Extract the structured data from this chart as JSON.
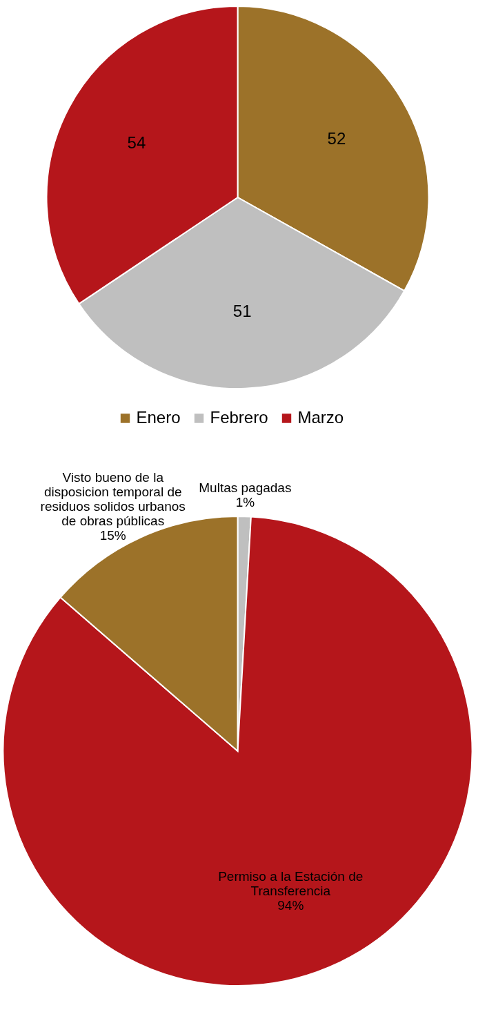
{
  "chart_data": [
    {
      "type": "pie",
      "categories": [
        "Enero",
        "Febrero",
        "Marzo"
      ],
      "values": [
        52,
        51,
        54
      ],
      "colors": [
        "#9c7229",
        "#bfbfbf",
        "#b5161b"
      ],
      "data_labels": true,
      "legend": "bottom"
    },
    {
      "type": "pie",
      "categories": [
        "Multas pagadas",
        "Permiso a la Estación de Transferencia",
        "Visto bueno de la disposicion temporal de residuos solidos urbanos de obras públicas"
      ],
      "values": [
        1,
        94,
        15
      ],
      "colors": [
        "#bfbfbf",
        "#b5161b",
        "#9c7229"
      ],
      "value_labels": [
        "1%",
        "94%",
        "15%"
      ],
      "legend": false
    }
  ]
}
